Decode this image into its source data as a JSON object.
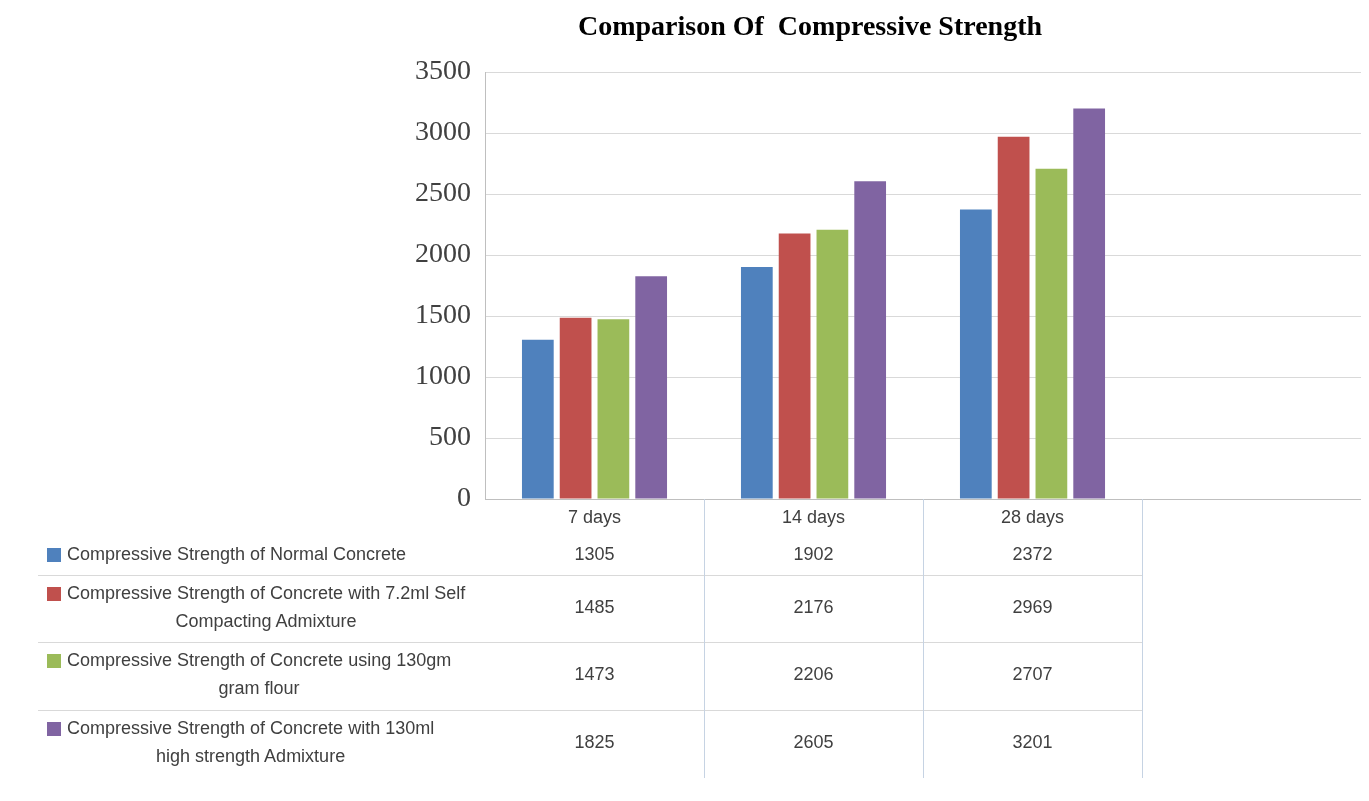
{
  "chart_data": {
    "type": "bar",
    "title": "Comparison Of  Compressive Strength",
    "categories": [
      "7 days",
      "14 days",
      "28 days",
      null
    ],
    "series": [
      {
        "name": "Compressive Strength of Normal Concrete",
        "color": "#4f81bd",
        "values": [
          1305,
          1902,
          2372,
          null
        ]
      },
      {
        "name": "Compressive Strength of Concrete with 7.2ml Self Compacting Admixture",
        "color": "#c0504d",
        "values": [
          1485,
          2176,
          2969,
          null
        ]
      },
      {
        "name": "Compressive Strength of Concrete using 130gm gram flour",
        "color": "#9bbb59",
        "values": [
          1473,
          2206,
          2707,
          null
        ]
      },
      {
        "name": "Compressive Strength of Concrete with 130ml high strength Admixture",
        "color": "#8064a2",
        "values": [
          1825,
          2605,
          3201,
          null
        ]
      }
    ],
    "ylim": [
      0,
      3500
    ],
    "yticks": [
      0,
      500,
      1000,
      1500,
      2000,
      2500,
      3000,
      3500
    ],
    "grid": "y",
    "legend": "bottom",
    "data_labels": true
  }
}
